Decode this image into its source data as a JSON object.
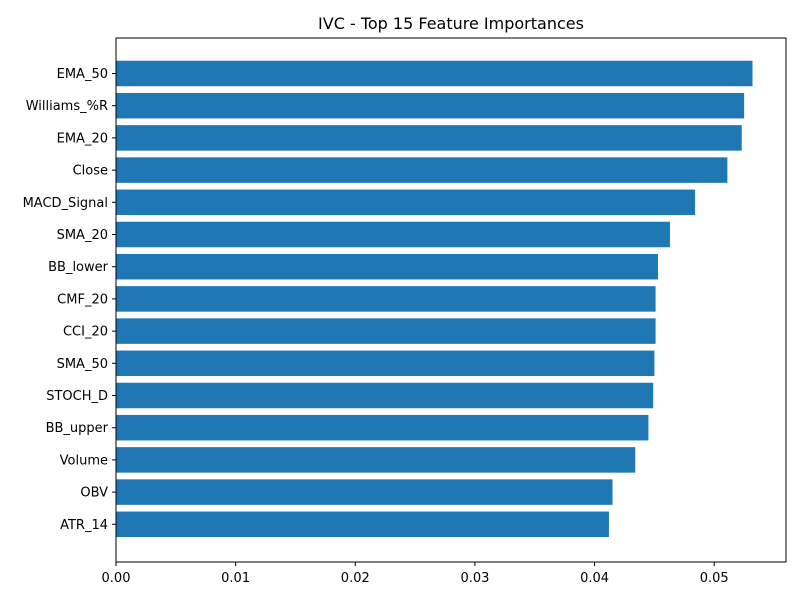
{
  "chart_data": {
    "type": "bar",
    "orientation": "horizontal",
    "title": "IVC - Top 15 Feature Importances",
    "xlabel": "",
    "ylabel": "",
    "xlim": [
      0,
      0.056
    ],
    "xticks": [
      0.0,
      0.01,
      0.02,
      0.03,
      0.04,
      0.05
    ],
    "xtick_labels": [
      "0.00",
      "0.01",
      "0.02",
      "0.03",
      "0.04",
      "0.05"
    ],
    "grid": false,
    "legend": "none",
    "bar_color": "#1f77b4",
    "categories": [
      "EMA_50",
      "Williams_%R",
      "EMA_20",
      "Close",
      "MACD_Signal",
      "SMA_20",
      "BB_lower",
      "CMF_20",
      "CCI_20",
      "SMA_50",
      "STOCH_D",
      "BB_upper",
      "Volume",
      "OBV",
      "ATR_14"
    ],
    "values": [
      0.0532,
      0.0525,
      0.0523,
      0.0511,
      0.0484,
      0.0463,
      0.0453,
      0.0451,
      0.0451,
      0.045,
      0.0449,
      0.0445,
      0.0434,
      0.0415,
      0.0412
    ]
  }
}
